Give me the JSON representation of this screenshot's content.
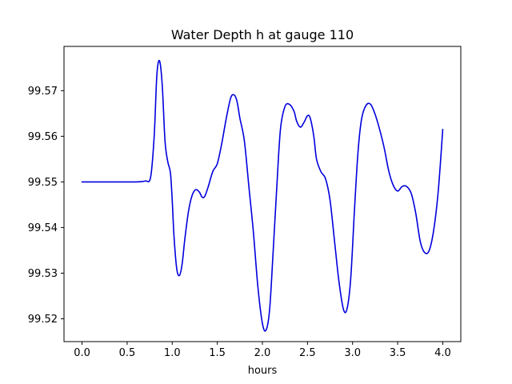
{
  "chart_data": {
    "type": "line",
    "title": "Water Depth h at gauge 110",
    "xlabel": "hours",
    "ylabel": "",
    "xlim": [
      -0.2,
      4.2
    ],
    "ylim": [
      99.515,
      99.5797
    ],
    "grid": false,
    "x_ticks": [
      0.0,
      0.5,
      1.0,
      1.5,
      2.0,
      2.5,
      3.0,
      3.5,
      4.0
    ],
    "x_tick_labels": [
      "0.0",
      "0.5",
      "1.0",
      "1.5",
      "2.0",
      "2.5",
      "3.0",
      "3.5",
      "4.0"
    ],
    "y_ticks": [
      99.52,
      99.53,
      99.54,
      99.55,
      99.56,
      99.57
    ],
    "y_tick_labels": [
      "99.52",
      "99.53",
      "99.54",
      "99.55",
      "99.56",
      "99.57"
    ],
    "series": [
      {
        "color": "#0000dd",
        "x": [
          0.0,
          0.2,
          0.4,
          0.6,
          0.7,
          0.76,
          0.8,
          0.83,
          0.86,
          0.89,
          0.92,
          0.95,
          0.98,
          1.0,
          1.02,
          1.05,
          1.08,
          1.11,
          1.14,
          1.18,
          1.22,
          1.26,
          1.3,
          1.33,
          1.36,
          1.4,
          1.45,
          1.5,
          1.55,
          1.6,
          1.65,
          1.69,
          1.72,
          1.75,
          1.8,
          1.85,
          1.9,
          1.95,
          2.0,
          2.04,
          2.08,
          2.12,
          2.16,
          2.2,
          2.25,
          2.3,
          2.35,
          2.38,
          2.42,
          2.46,
          2.5,
          2.53,
          2.57,
          2.6,
          2.65,
          2.7,
          2.75,
          2.8,
          2.85,
          2.9,
          2.94,
          2.98,
          3.02,
          3.06,
          3.1,
          3.15,
          3.2,
          3.25,
          3.3,
          3.35,
          3.4,
          3.45,
          3.5,
          3.55,
          3.6,
          3.65,
          3.7,
          3.75,
          3.8,
          3.85,
          3.9,
          3.95,
          4.0
        ],
        "y": [
          99.55,
          99.55,
          99.55,
          99.55,
          99.5502,
          99.551,
          99.56,
          99.5735,
          99.5765,
          99.571,
          99.559,
          99.5545,
          99.552,
          99.546,
          99.538,
          99.531,
          99.5295,
          99.532,
          99.5375,
          99.5435,
          99.547,
          99.5483,
          99.5478,
          99.5467,
          99.5468,
          99.549,
          99.5523,
          99.554,
          99.5585,
          99.564,
          99.5685,
          99.569,
          99.5675,
          99.564,
          99.559,
          99.549,
          99.539,
          99.527,
          99.519,
          99.5175,
          99.522,
          99.535,
          99.549,
          99.5615,
          99.5665,
          99.567,
          99.5655,
          99.5633,
          99.562,
          99.563,
          99.5645,
          99.564,
          99.56,
          99.555,
          99.5522,
          99.5507,
          99.546,
          99.537,
          99.528,
          99.522,
          99.5223,
          99.529,
          99.5435,
          99.5565,
          99.5638,
          99.5668,
          99.567,
          99.5648,
          99.5615,
          99.5575,
          99.5525,
          99.5493,
          99.548,
          99.549,
          99.549,
          99.5475,
          99.5432,
          99.537,
          99.5345,
          99.535,
          99.5395,
          99.548,
          99.5615
        ]
      }
    ]
  }
}
